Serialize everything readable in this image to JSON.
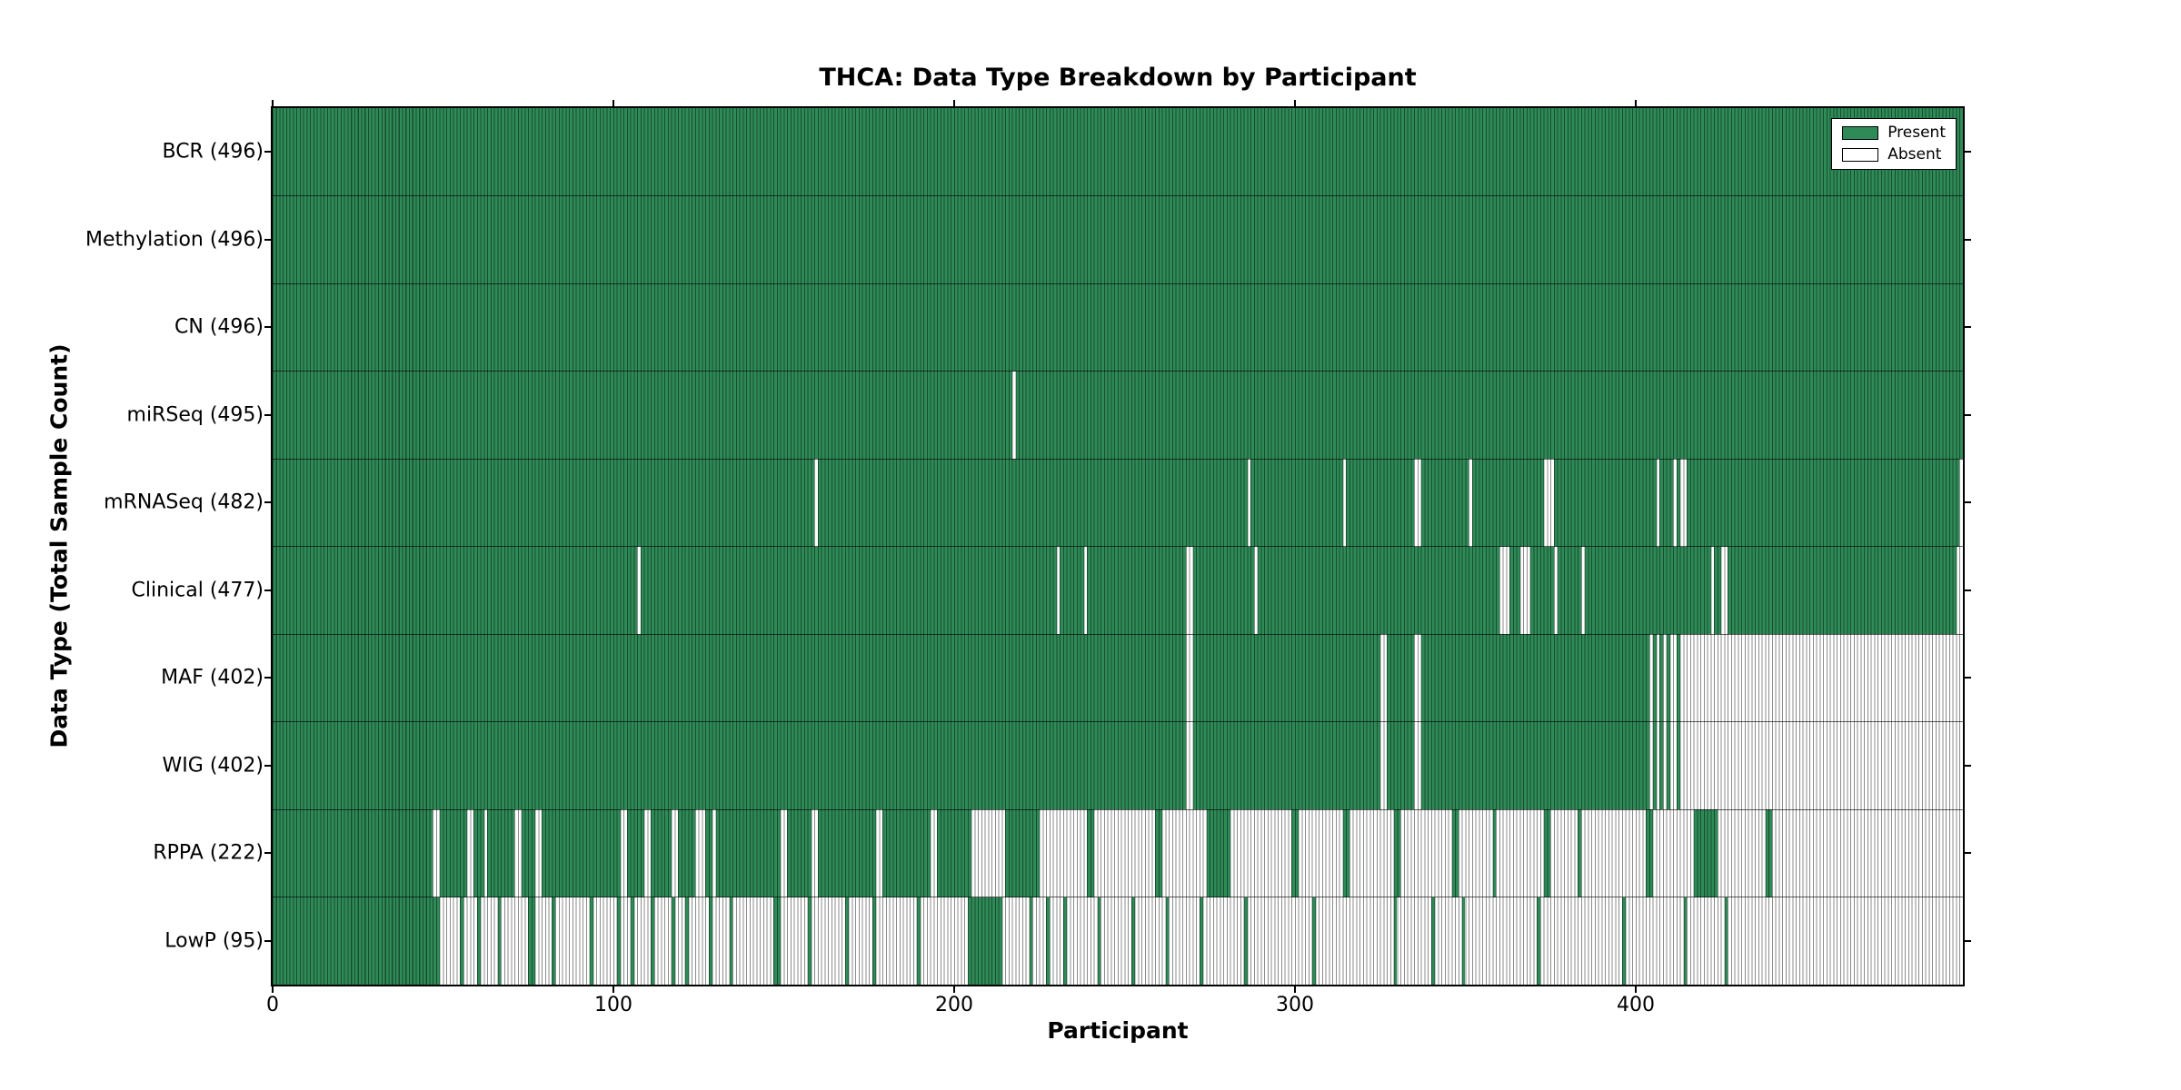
{
  "title": "THCA: Data Type Breakdown by Participant",
  "xlabel": "Participant",
  "ylabel": "Data Type (Total Sample Count)",
  "legend": {
    "present_label": "Present",
    "absent_label": "Absent"
  },
  "colors": {
    "present": "#2E8B57",
    "absent": "#FFFFFF",
    "edge_line": "rgba(0,0,0,0.45)",
    "border": "#000000",
    "background": "#FFFFFF"
  },
  "chart_data": {
    "type": "heatmap",
    "title": "THCA: Data Type Breakdown by Participant",
    "xlabel": "Participant",
    "ylabel": "Data Type (Total Sample Count)",
    "legend": [
      "Present",
      "Absent"
    ],
    "legend_position": "upper right",
    "x_range": [
      0,
      496
    ],
    "x_ticks": [
      0,
      100,
      200,
      300,
      400
    ],
    "grid": false,
    "rows": [
      {
        "name": "BCR",
        "label": "BCR (496)",
        "total": 496,
        "present_ranges": [
          [
            0,
            495
          ]
        ]
      },
      {
        "name": "Methylation",
        "label": "Methylation (496)",
        "total": 496,
        "present_ranges": [
          [
            0,
            495
          ]
        ]
      },
      {
        "name": "CN",
        "label": "CN (496)",
        "total": 496,
        "present_ranges": [
          [
            0,
            495
          ]
        ]
      },
      {
        "name": "miRSeq",
        "label": "miRSeq (495)",
        "total": 495,
        "present_ranges": [
          [
            0,
            216
          ],
          [
            218,
            495
          ]
        ]
      },
      {
        "name": "mRNASeq",
        "label": "mRNASeq (482)",
        "total": 482,
        "present_ranges": [
          [
            0,
            158
          ],
          [
            160,
            285
          ],
          [
            287,
            313
          ],
          [
            315,
            334
          ],
          [
            337,
            350
          ],
          [
            352,
            372
          ],
          [
            376,
            405
          ],
          [
            407,
            410
          ],
          [
            412,
            412
          ],
          [
            415,
            494
          ]
        ]
      },
      {
        "name": "Clinical",
        "label": "Clinical (477)",
        "total": 477,
        "present_ranges": [
          [
            0,
            106
          ],
          [
            108,
            229
          ],
          [
            231,
            237
          ],
          [
            239,
            267
          ],
          [
            270,
            287
          ],
          [
            289,
            359
          ],
          [
            363,
            365
          ],
          [
            369,
            375
          ],
          [
            377,
            383
          ],
          [
            385,
            421
          ],
          [
            423,
            424
          ],
          [
            427,
            493
          ]
        ]
      },
      {
        "name": "MAF",
        "label": "MAF (402)",
        "total": 402,
        "present_ranges": [
          [
            0,
            267
          ],
          [
            270,
            324
          ],
          [
            327,
            334
          ],
          [
            337,
            403
          ],
          [
            405,
            405
          ],
          [
            407,
            407
          ],
          [
            409,
            409
          ],
          [
            412,
            412
          ]
        ]
      },
      {
        "name": "WIG",
        "label": "WIG (402)",
        "total": 402,
        "present_ranges": [
          [
            0,
            267
          ],
          [
            270,
            324
          ],
          [
            327,
            334
          ],
          [
            337,
            403
          ],
          [
            405,
            405
          ],
          [
            407,
            407
          ],
          [
            409,
            409
          ],
          [
            412,
            412
          ]
        ]
      },
      {
        "name": "RPPA",
        "label": "RPPA (222)",
        "total": 222,
        "present_ranges": [
          [
            0,
            46
          ],
          [
            49,
            56
          ],
          [
            59,
            61
          ],
          [
            63,
            70
          ],
          [
            73,
            76
          ],
          [
            79,
            101
          ],
          [
            104,
            108
          ],
          [
            111,
            116
          ],
          [
            119,
            123
          ],
          [
            127,
            128
          ],
          [
            130,
            148
          ],
          [
            151,
            157
          ],
          [
            160,
            176
          ],
          [
            179,
            192
          ],
          [
            195,
            204
          ],
          [
            215,
            224
          ],
          [
            239,
            240
          ],
          [
            259,
            260
          ],
          [
            274,
            280
          ],
          [
            299,
            300
          ],
          [
            314,
            315
          ],
          [
            329,
            330
          ],
          [
            346,
            347
          ],
          [
            358,
            358
          ],
          [
            373,
            374
          ],
          [
            383,
            383
          ],
          [
            403,
            404
          ],
          [
            417,
            423
          ],
          [
            438,
            439
          ]
        ]
      },
      {
        "name": "LowP",
        "label": "LowP (95)",
        "total": 95,
        "present_ranges": [
          [
            0,
            48
          ],
          [
            55,
            55
          ],
          [
            60,
            60
          ],
          [
            66,
            66
          ],
          [
            75,
            76
          ],
          [
            82,
            82
          ],
          [
            93,
            93
          ],
          [
            101,
            101
          ],
          [
            105,
            105
          ],
          [
            111,
            111
          ],
          [
            117,
            117
          ],
          [
            121,
            121
          ],
          [
            128,
            128
          ],
          [
            134,
            134
          ],
          [
            147,
            148
          ],
          [
            157,
            157
          ],
          [
            168,
            168
          ],
          [
            176,
            176
          ],
          [
            189,
            189
          ],
          [
            204,
            213
          ],
          [
            222,
            222
          ],
          [
            227,
            227
          ],
          [
            232,
            232
          ],
          [
            242,
            242
          ],
          [
            252,
            252
          ],
          [
            262,
            262
          ],
          [
            272,
            272
          ],
          [
            285,
            285
          ],
          [
            305,
            305
          ],
          [
            329,
            329
          ],
          [
            340,
            340
          ],
          [
            349,
            349
          ],
          [
            371,
            371
          ],
          [
            396,
            396
          ],
          [
            414,
            414
          ],
          [
            426,
            426
          ]
        ]
      }
    ]
  }
}
